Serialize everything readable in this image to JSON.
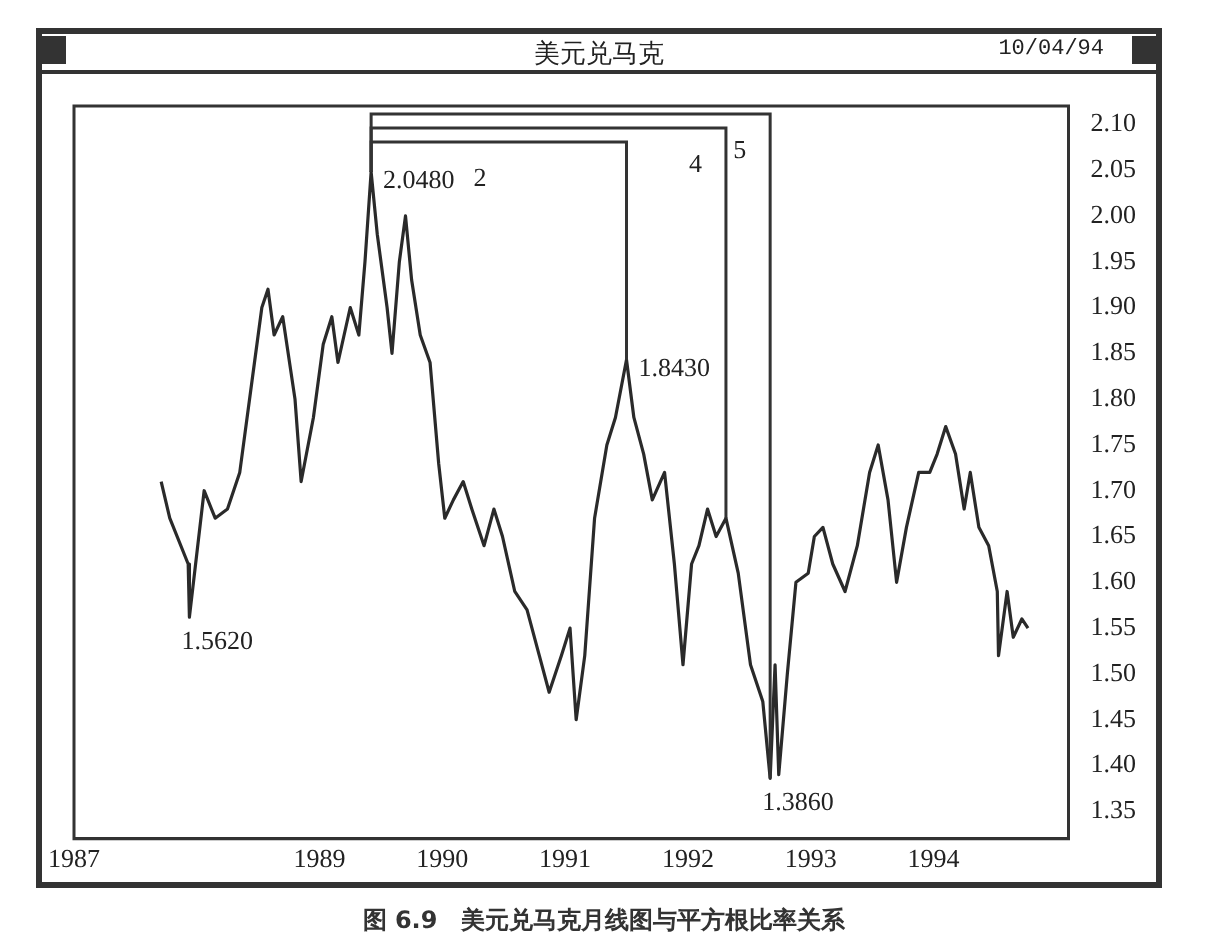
{
  "chart_data": {
    "type": "line",
    "title": "美元兑马克",
    "subtitle": "10/04/94",
    "x": [
      1987.71,
      1987.78,
      1987.93,
      1987.94,
      1988.06,
      1988.15,
      1988.25,
      1988.35,
      1988.45,
      1988.53,
      1988.58,
      1988.63,
      1988.7,
      1988.8,
      1988.85,
      1988.95,
      1989.03,
      1989.1,
      1989.15,
      1989.25,
      1989.32,
      1989.37,
      1989.42,
      1989.47,
      1989.55,
      1989.59,
      1989.65,
      1989.7,
      1989.75,
      1989.82,
      1989.9,
      1989.97,
      1990.02,
      1990.09,
      1990.17,
      1990.24,
      1990.34,
      1990.42,
      1990.49,
      1990.59,
      1990.69,
      1990.79,
      1990.87,
      1990.97,
      1991.04,
      1991.09,
      1991.16,
      1991.24,
      1991.34,
      1991.41,
      1991.5,
      1991.56,
      1991.64,
      1991.71,
      1991.81,
      1991.89,
      1991.96,
      1992.03,
      1992.09,
      1992.16,
      1992.23,
      1992.31,
      1992.41,
      1992.51,
      1992.61,
      1992.67,
      1992.71,
      1992.74,
      1992.81,
      1992.88,
      1992.98,
      1993.03,
      1993.1,
      1993.18,
      1993.28,
      1993.38,
      1993.48,
      1993.55,
      1993.63,
      1993.7,
      1993.78,
      1993.88,
      1993.97,
      1994.03,
      1994.1,
      1994.18,
      1994.25,
      1994.3,
      1994.37,
      1994.45,
      1994.52,
      1994.53,
      1994.6,
      1994.65,
      1994.72,
      1994.77
    ],
    "series": [
      {
        "color": "#2a2a2a",
        "values": [
          1.71,
          1.67,
          1.62,
          1.562,
          1.7,
          1.67,
          1.68,
          1.72,
          1.82,
          1.9,
          1.92,
          1.87,
          1.89,
          1.8,
          1.71,
          1.78,
          1.86,
          1.89,
          1.84,
          1.9,
          1.87,
          1.95,
          2.048,
          1.98,
          1.9,
          1.85,
          1.95,
          2.0,
          1.93,
          1.87,
          1.84,
          1.73,
          1.67,
          1.69,
          1.71,
          1.68,
          1.64,
          1.68,
          1.65,
          1.59,
          1.57,
          1.52,
          1.48,
          1.52,
          1.55,
          1.45,
          1.52,
          1.67,
          1.75,
          1.78,
          1.843,
          1.78,
          1.74,
          1.69,
          1.72,
          1.62,
          1.51,
          1.62,
          1.64,
          1.68,
          1.65,
          1.67,
          1.61,
          1.51,
          1.47,
          1.386,
          1.51,
          1.39,
          1.5,
          1.6,
          1.61,
          1.65,
          1.66,
          1.62,
          1.59,
          1.64,
          1.72,
          1.75,
          1.69,
          1.6,
          1.66,
          1.72,
          1.72,
          1.74,
          1.77,
          1.74,
          1.68,
          1.72,
          1.66,
          1.64,
          1.59,
          1.52,
          1.59,
          1.54,
          1.56,
          1.55
        ]
      }
    ],
    "xlim": [
      1987,
      1995.1
    ],
    "xticks": [
      1987,
      1989,
      1990,
      1991,
      1992,
      1993,
      1994
    ],
    "ylim": [
      1.32,
      2.12
    ],
    "yticks": [
      {
        "value": 1.35,
        "label": "1.35"
      },
      {
        "value": 1.4,
        "label": "1.40"
      },
      {
        "value": 1.45,
        "label": "1.45"
      },
      {
        "value": 1.5,
        "label": "1.50"
      },
      {
        "value": 1.55,
        "label": "1.55"
      },
      {
        "value": 1.6,
        "label": "1.60"
      },
      {
        "value": 1.65,
        "label": "1.65"
      },
      {
        "value": 1.7,
        "label": "1.70"
      },
      {
        "value": 1.75,
        "label": "1.75"
      },
      {
        "value": 1.8,
        "label": "1.80"
      },
      {
        "value": 1.85,
        "label": "1.85"
      },
      {
        "value": 1.9,
        "label": "1.90"
      },
      {
        "value": 1.95,
        "label": "1.95"
      },
      {
        "value": 2.0,
        "label": "2.00"
      },
      {
        "value": 2.05,
        "label": "2.05"
      },
      {
        "value": 2.1,
        "label": "2.10"
      }
    ],
    "grid": false,
    "legend": false,
    "marker": "none",
    "line_style": "solid",
    "annotations": [
      {
        "text": "2.0480",
        "x": 1989.42,
        "y": 2.048
      },
      {
        "text": "1.5620",
        "x": 1987.94,
        "y": 1.562
      },
      {
        "text": "1.8430",
        "x": 1991.5,
        "y": 1.843
      },
      {
        "text": "1.3860",
        "x": 1992.67,
        "y": 1.386
      },
      "2",
      "4",
      "5",
      "图 6.9　美元兑马克月线图与平方根比率关系"
    ]
  }
}
